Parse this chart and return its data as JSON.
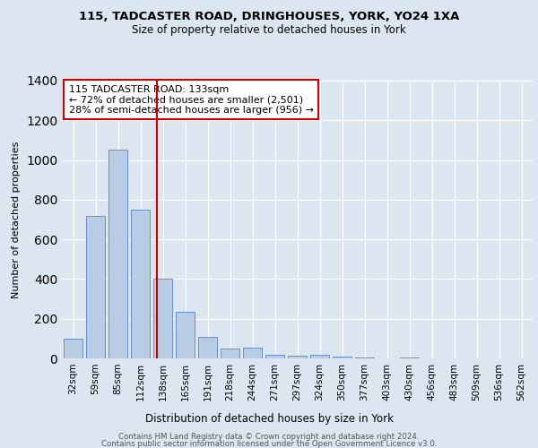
{
  "title1": "115, TADCASTER ROAD, DRINGHOUSES, YORK, YO24 1XA",
  "title2": "Size of property relative to detached houses in York",
  "xlabel": "Distribution of detached houses by size in York",
  "ylabel": "Number of detached properties",
  "categories": [
    "32sqm",
    "59sqm",
    "85sqm",
    "112sqm",
    "138sqm",
    "165sqm",
    "191sqm",
    "218sqm",
    "244sqm",
    "271sqm",
    "297sqm",
    "324sqm",
    "350sqm",
    "377sqm",
    "403sqm",
    "430sqm",
    "456sqm",
    "483sqm",
    "509sqm",
    "536sqm",
    "562sqm"
  ],
  "values": [
    100,
    720,
    1050,
    750,
    400,
    235,
    110,
    50,
    55,
    20,
    15,
    20,
    10,
    5,
    0,
    5,
    0,
    0,
    0,
    0,
    0
  ],
  "bar_color": "#b8cce4",
  "bar_edge_color": "#4472c4",
  "background_color": "#dce6f1",
  "plot_bg_color": "#dce6f1",
  "grid_color": "#ffffff",
  "marker_bin_index": 4,
  "annotation_title": "115 TADCASTER ROAD: 133sqm",
  "annotation_line1": "← 72% of detached houses are smaller (2,501)",
  "annotation_line2": "28% of semi-detached houses are larger (956) →",
  "annotation_box_color": "#ffffff",
  "annotation_box_edge": "#cc0000",
  "marker_line_color": "#cc0000",
  "footer1": "Contains HM Land Registry data © Crown copyright and database right 2024.",
  "footer2": "Contains public sector information licensed under the Open Government Licence v3.0.",
  "ylim": [
    0,
    1400
  ],
  "yticks": [
    0,
    200,
    400,
    600,
    800,
    1000,
    1200,
    1400
  ]
}
